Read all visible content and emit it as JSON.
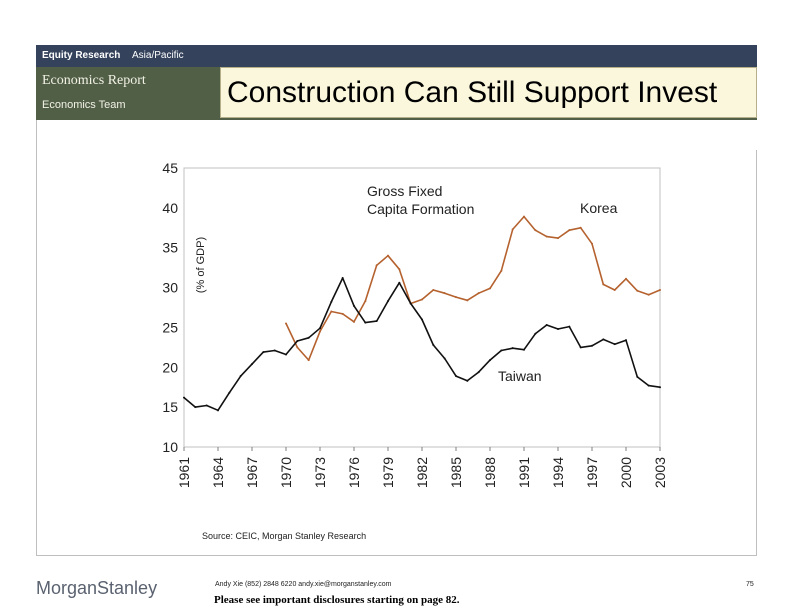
{
  "header": {
    "research_label": "Equity Research",
    "region": "Asia/Pacific",
    "report_type": "Economics Report",
    "team": "Economics Team",
    "title": "Construction Can Still Support Invest"
  },
  "footer": {
    "source": "Source: CEIC, Morgan Stanley Research",
    "logo_word1": "Morgan",
    "logo_word2": "Stanley",
    "author": "Andy Xie (852) 2848 6220  andy.xie@morganstanley.com",
    "disclaimer": "Please see important disclosures starting on page 82.",
    "page_number": "75"
  },
  "colors": {
    "korea": "#b5622f",
    "taiwan": "#111111",
    "header_bar": "#34425b",
    "header_block": "#525f47"
  },
  "chart_data": {
    "type": "line",
    "title_lines": [
      "Gross Fixed",
      "Capita Formation"
    ],
    "ylabel": "(% of GDP)",
    "xlabel": "",
    "ylim": [
      10,
      45
    ],
    "yticks": [
      10,
      15,
      20,
      25,
      30,
      35,
      40,
      45
    ],
    "xlim": [
      1961,
      2003
    ],
    "xticks": [
      1961,
      1964,
      1967,
      1970,
      1973,
      1976,
      1979,
      1982,
      1985,
      1988,
      1991,
      1994,
      1997,
      2000,
      2003
    ],
    "grid": false,
    "series": [
      {
        "name": "Korea",
        "x": [
          1970,
          1971,
          1972,
          1973,
          1974,
          1975,
          1976,
          1977,
          1978,
          1979,
          1980,
          1981,
          1982,
          1983,
          1984,
          1985,
          1986,
          1987,
          1988,
          1989,
          1990,
          1991,
          1992,
          1993,
          1994,
          1995,
          1996,
          1997,
          1998,
          1999,
          2000,
          2001,
          2002,
          2003
        ],
        "values": [
          25.5,
          22.5,
          20.9,
          24.5,
          27.0,
          26.7,
          25.7,
          28.3,
          32.8,
          34.0,
          32.3,
          28.0,
          28.5,
          29.7,
          29.3,
          28.8,
          28.4,
          29.3,
          29.9,
          32.1,
          37.3,
          38.9,
          37.2,
          36.4,
          36.2,
          37.2,
          37.5,
          35.5,
          30.4,
          29.7,
          31.1,
          29.6,
          29.1,
          29.7
        ]
      },
      {
        "name": "Taiwan",
        "x": [
          1961,
          1962,
          1963,
          1964,
          1965,
          1966,
          1967,
          1968,
          1969,
          1970,
          1971,
          1972,
          1973,
          1974,
          1975,
          1976,
          1977,
          1978,
          1979,
          1980,
          1981,
          1982,
          1983,
          1984,
          1985,
          1986,
          1987,
          1988,
          1989,
          1990,
          1991,
          1992,
          1993,
          1994,
          1995,
          1996,
          1997,
          1998,
          1999,
          2000,
          2001,
          2002,
          2003
        ],
        "values": [
          16.2,
          15.0,
          15.2,
          14.6,
          16.8,
          18.9,
          20.4,
          21.9,
          22.1,
          21.6,
          23.3,
          23.7,
          24.9,
          28.2,
          31.2,
          27.7,
          25.6,
          25.8,
          28.3,
          30.6,
          28.0,
          26.0,
          22.8,
          21.1,
          18.9,
          18.3,
          19.4,
          20.9,
          22.1,
          22.4,
          22.2,
          24.2,
          25.3,
          24.8,
          25.1,
          22.5,
          22.7,
          23.5,
          22.9,
          23.4,
          18.8,
          17.7,
          17.5
        ]
      }
    ]
  }
}
